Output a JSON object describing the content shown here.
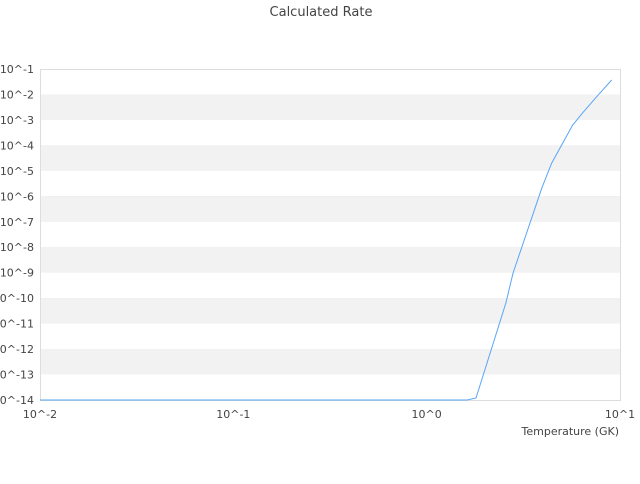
{
  "chart_data": {
    "type": "line",
    "title": "Calculated Rate",
    "xlabel": "Temperature (GK)",
    "ylabel": "",
    "xscale": "log",
    "yscale": "log",
    "xlim": [
      0.01,
      10
    ],
    "ylim": [
      1e-14,
      0.1
    ],
    "x_tick_labels": [
      "10^-2",
      "10^-1",
      "10^0",
      "10^1"
    ],
    "y_tick_labels": [
      "10^-1",
      "10^-2",
      "10^-3",
      "10^-4",
      "10^-5",
      "10^-6",
      "10^-7",
      "10^-8",
      "10^-9",
      "10^-10",
      "10^-11",
      "10^-12",
      "10^-13",
      "10^-14"
    ],
    "grid": "horizontal alternating bands",
    "legend": "none",
    "series": [
      {
        "color": "#5aa5f5",
        "x": [
          1.62,
          1.8,
          1.89,
          2.57,
          2.8,
          3.94,
          4.43,
          5.69,
          6.44,
          7.58,
          9.06
        ],
        "y": [
          1e-14,
          1.2e-14,
          3.9e-14,
          6.5e-11,
          9.8e-10,
          2.1e-06,
          2e-05,
          0.00063,
          0.002,
          0.0082,
          0.037
        ]
      }
    ]
  }
}
